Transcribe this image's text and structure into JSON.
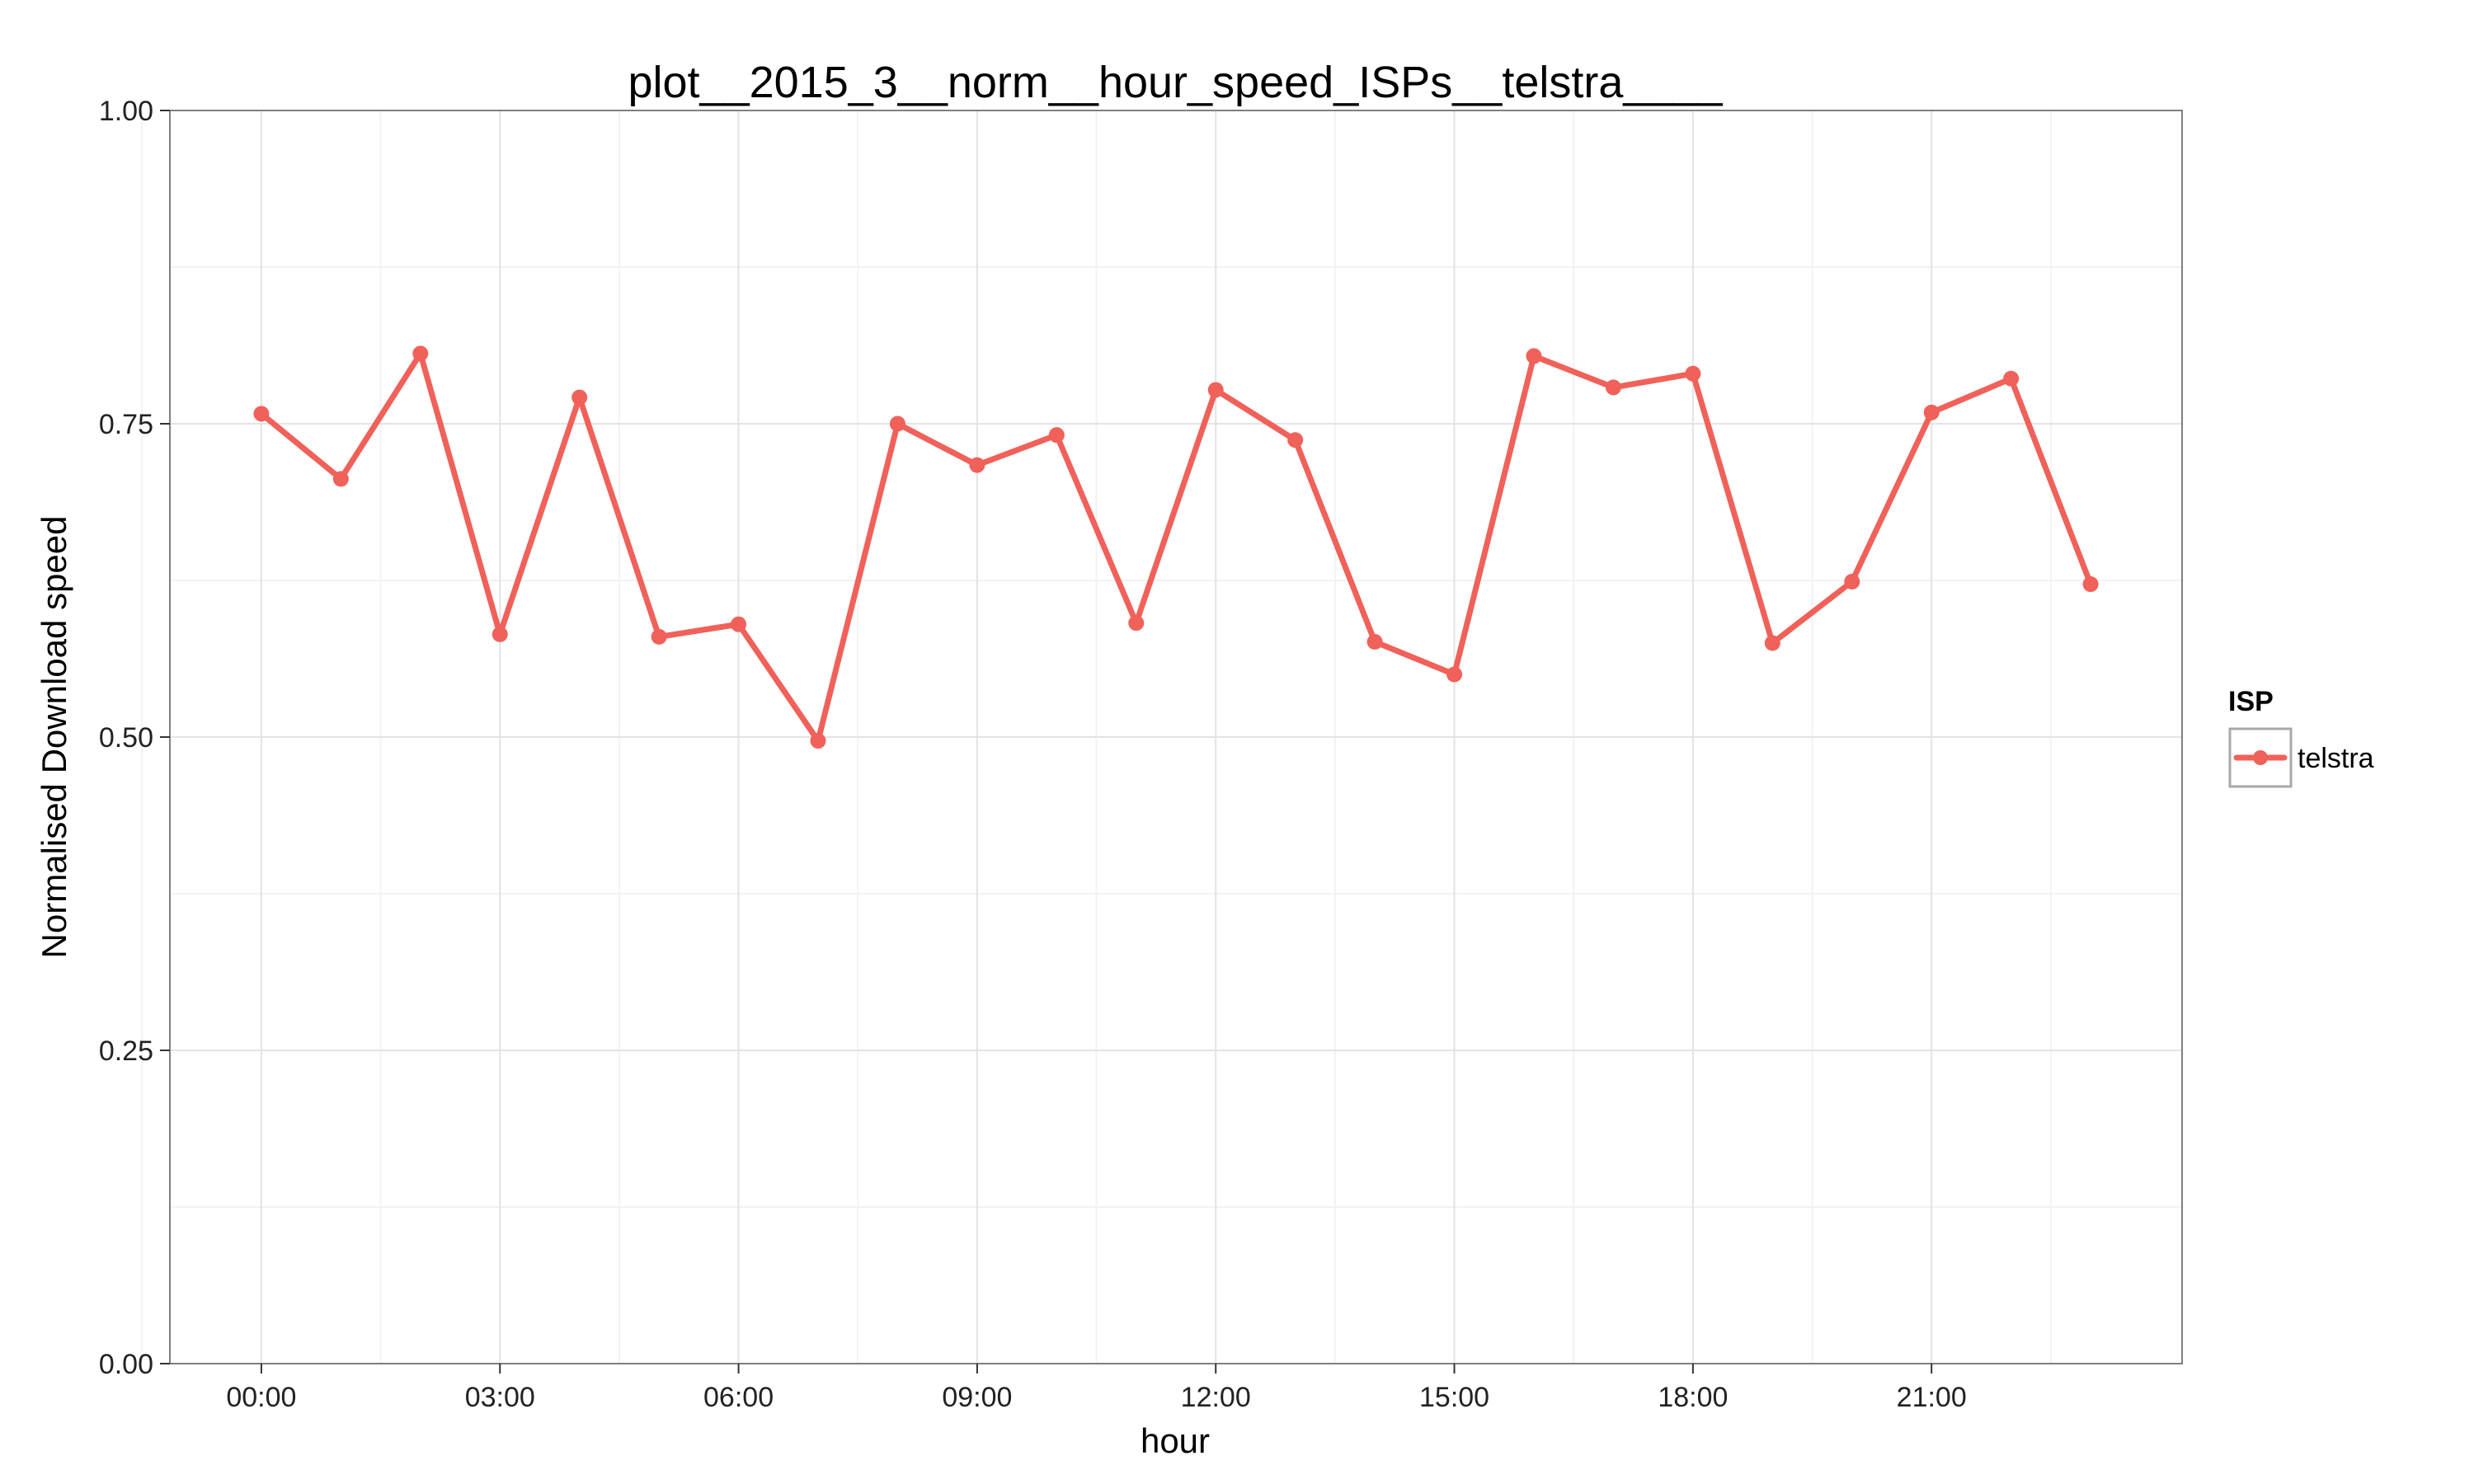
{
  "chart_data": {
    "type": "line",
    "title": "plot__2015_3__norm__hour_speed_ISPs__telstra____",
    "xlabel": "hour",
    "ylabel": "Normalised Download speed",
    "x": [
      0,
      1,
      2,
      3,
      4,
      5,
      6,
      7,
      8,
      9,
      10,
      11,
      12,
      13,
      14,
      15,
      16,
      17,
      18,
      19,
      20,
      21,
      22,
      23
    ],
    "x_ticks": [
      0,
      3,
      6,
      9,
      12,
      15,
      18,
      21
    ],
    "x_tick_labels": [
      "00:00",
      "03:00",
      "06:00",
      "09:00",
      "12:00",
      "15:00",
      "18:00",
      "21:00"
    ],
    "xlim": [
      -1.15,
      24.15
    ],
    "ylim": [
      0,
      1
    ],
    "y_ticks": [
      0,
      0.25,
      0.5,
      0.75,
      1
    ],
    "y_tick_labels": [
      "0.00",
      "0.25",
      "0.50",
      "0.75",
      "1.00"
    ],
    "grid": true,
    "legend_position": "right",
    "legend_title": "ISP",
    "series": [
      {
        "name": "telstra",
        "color": "#F0615A",
        "values": [
          0.758,
          0.706,
          0.806,
          0.582,
          0.771,
          0.58,
          0.59,
          0.497,
          0.75,
          0.717,
          0.741,
          0.591,
          0.777,
          0.737,
          0.576,
          0.55,
          0.804,
          0.779,
          0.79,
          0.575,
          0.624,
          0.759,
          0.786,
          0.622
        ]
      }
    ]
  }
}
